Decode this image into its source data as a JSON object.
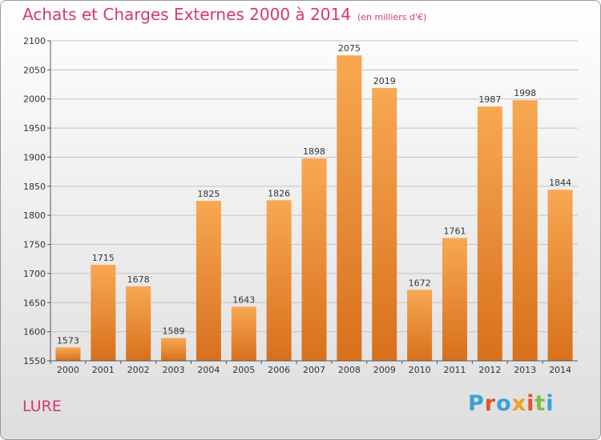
{
  "title": "Achats et Charges Externes 2000 à 2014",
  "title_unit": "(en milliers d'€)",
  "city": "LURE",
  "brand": "Proxiti",
  "colors": {
    "title": "#d83868",
    "bar_light": "#f8a852",
    "bar_dark": "#d8701c",
    "brand_letters": [
      "#3aa0d8",
      "#e8502a",
      "#3aa0d8",
      "#f0a020",
      "#e8502a",
      "#80c040",
      "#3aa0d8"
    ]
  },
  "chart_data": {
    "type": "bar",
    "categories": [
      "2000",
      "2001",
      "2002",
      "2003",
      "2004",
      "2005",
      "2006",
      "2007",
      "2008",
      "2009",
      "2010",
      "2011",
      "2012",
      "2013",
      "2014"
    ],
    "values": [
      1573,
      1715,
      1678,
      1589,
      1825,
      1643,
      1826,
      1898,
      2075,
      2019,
      1672,
      1761,
      1987,
      1998,
      1844
    ],
    "title": "Achats et Charges Externes 2000 à 2014",
    "xlabel": "",
    "ylabel": "",
    "ylim": [
      1550,
      2100
    ],
    "yticks": [
      1550,
      1600,
      1650,
      1700,
      1750,
      1800,
      1850,
      1900,
      1950,
      2000,
      2050,
      2100
    ],
    "grid": true,
    "legend": "none"
  }
}
